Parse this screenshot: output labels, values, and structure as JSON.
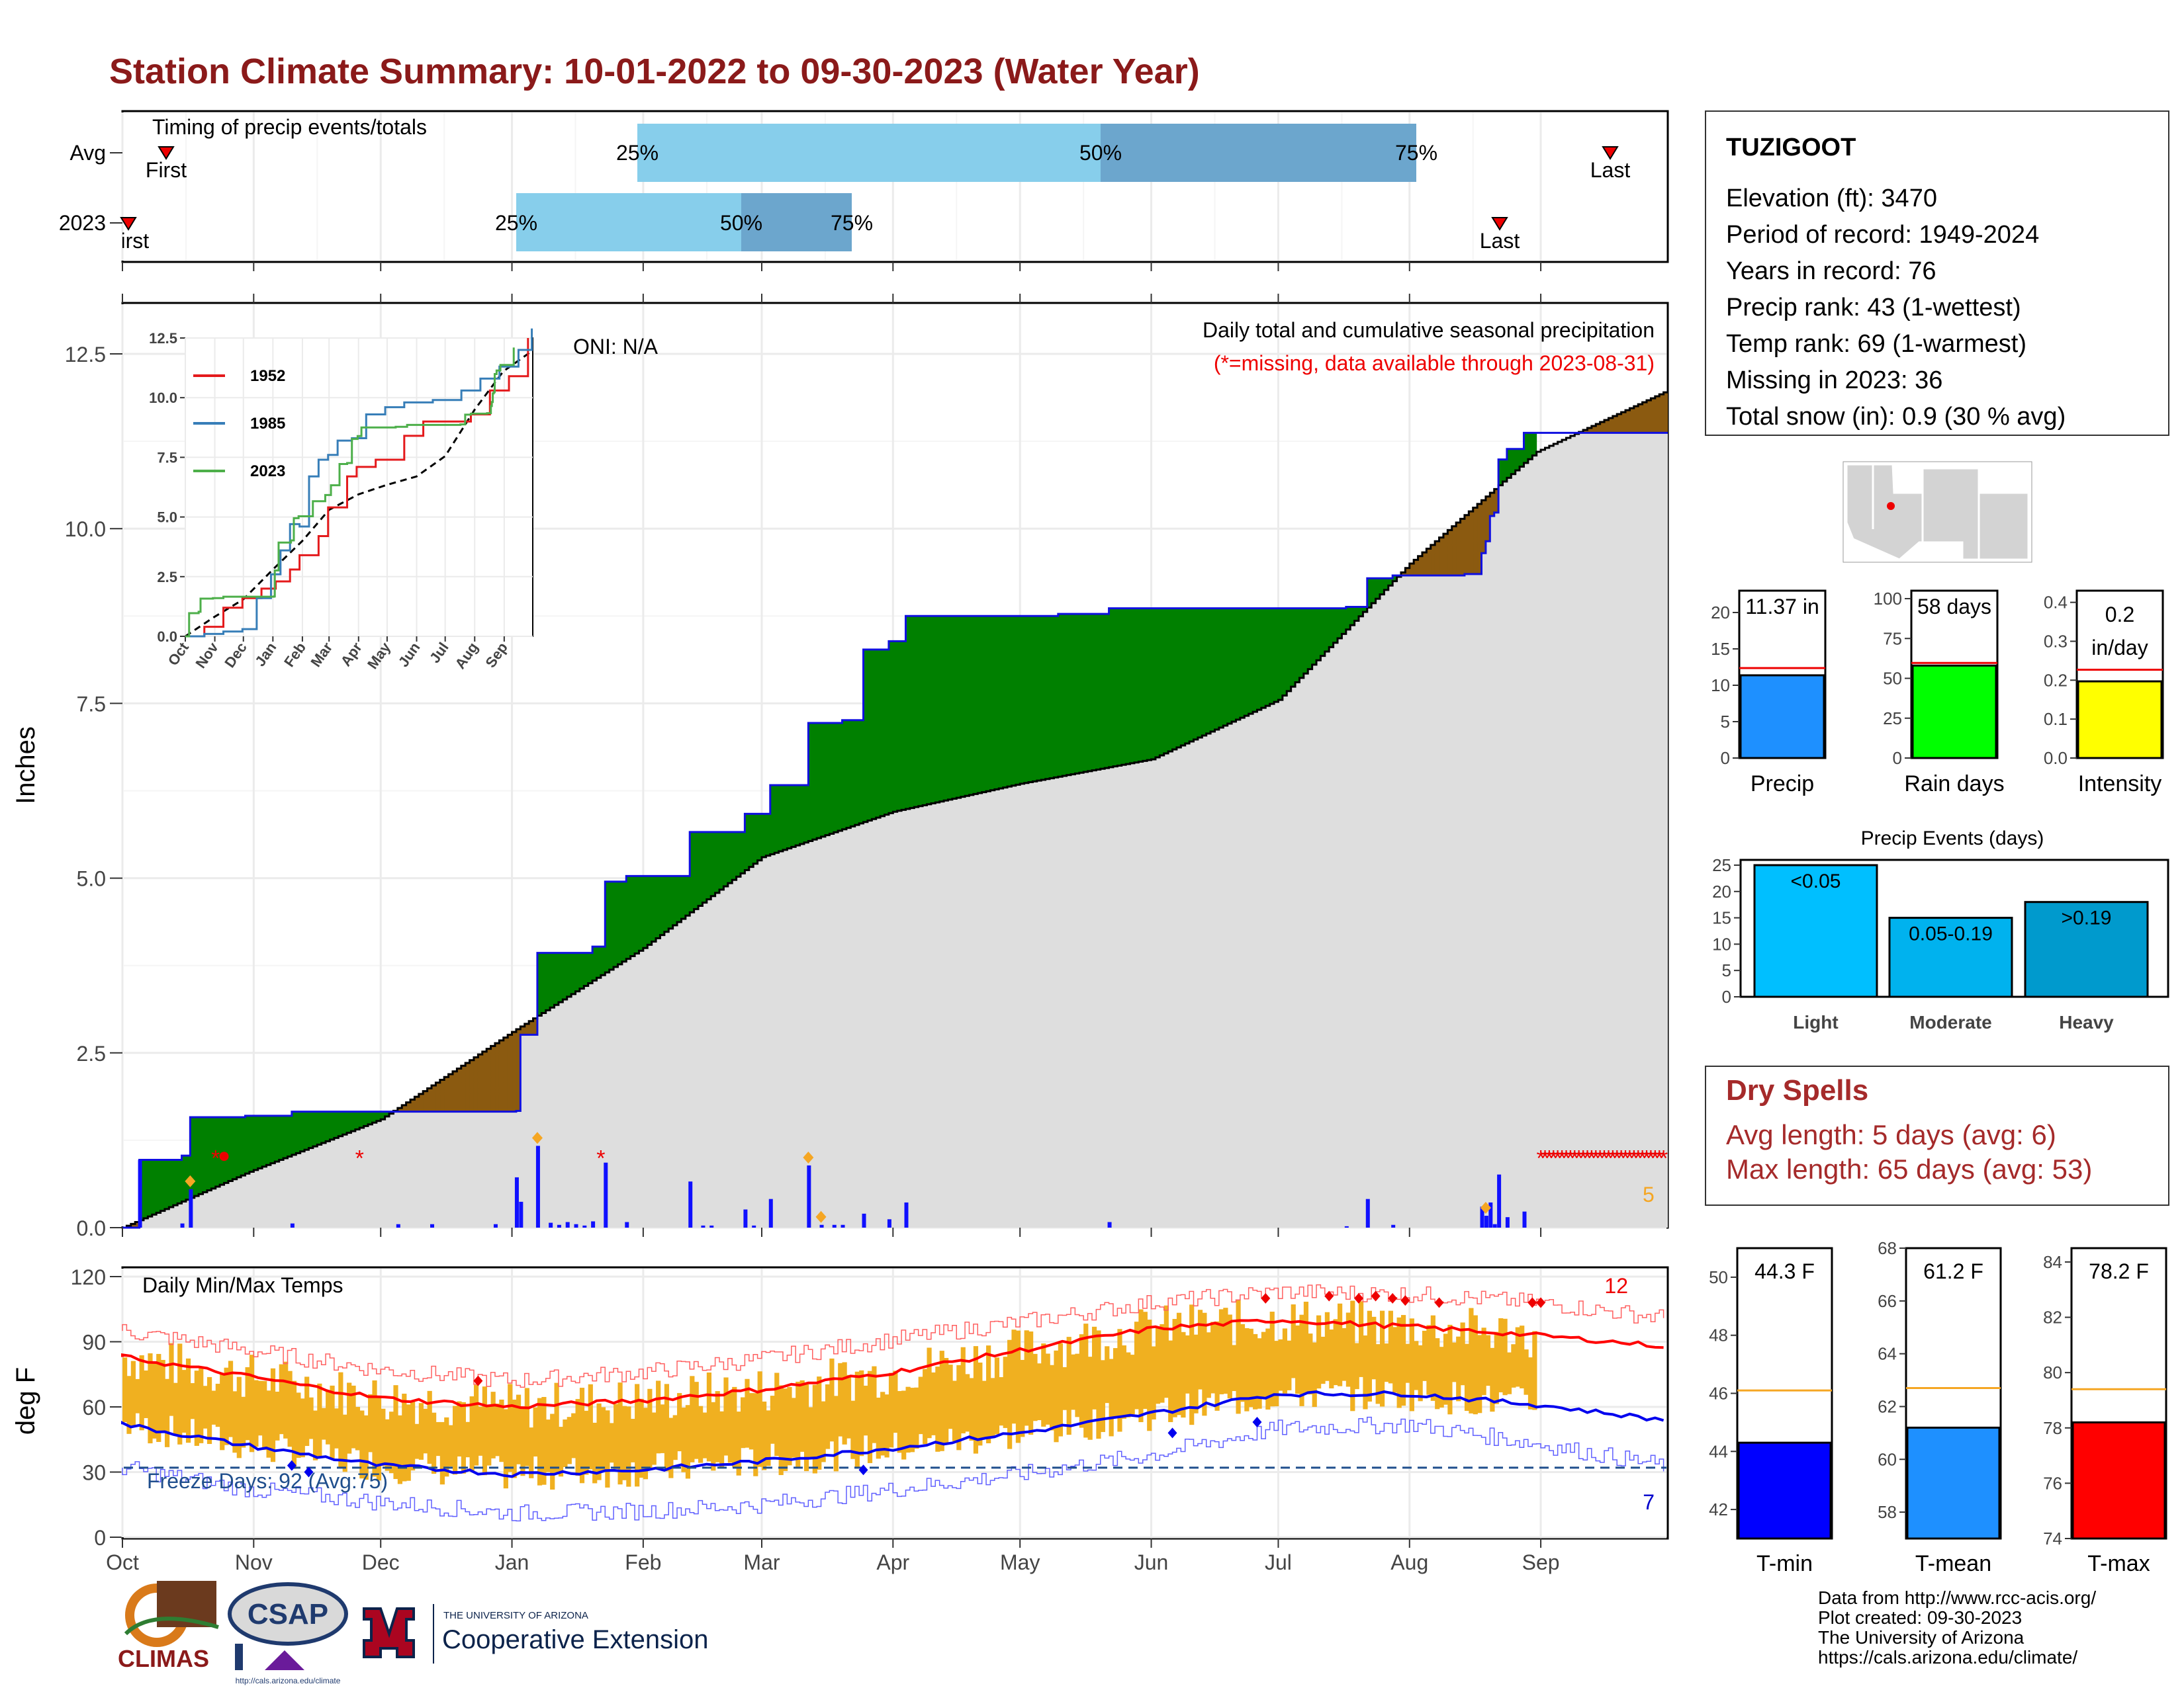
{
  "header": {
    "title": "Station Climate Summary: 10-01-2022 to 09-30-2023 (Water Year)"
  },
  "months": [
    "Oct",
    "Nov",
    "Dec",
    "Jan",
    "Feb",
    "Mar",
    "Apr",
    "May",
    "Jun",
    "Jul",
    "Aug",
    "Sep"
  ],
  "station": {
    "name": "TUZIGOOT",
    "lines": [
      "Elevation (ft): 3470",
      "Period of record: 1949-2024",
      "Years in record: 76",
      "Precip rank: 43 (1-wettest)",
      "Temp rank: 69 (1-warmest)",
      "Missing in 2023: 36",
      "Total snow (in): 0.9 (30 % avg)"
    ]
  },
  "timing": {
    "title": "Timing of precip events/totals",
    "rows": [
      {
        "label": "Avg",
        "first": "First",
        "last": "Last",
        "q25": "25%",
        "q50": "50%",
        "q75": "75%"
      },
      {
        "label": "2023",
        "first": "First",
        "last": "Last",
        "q25": "25%",
        "q50": "50%",
        "q75": "75%"
      }
    ]
  },
  "precip_panel": {
    "ylabel": "Inches",
    "caption1": "Daily total and cumulative seasonal precipitation",
    "caption2": "(*=missing, data available through 2023-08-31)",
    "oni": "ONI: N/A",
    "count_label": "5",
    "yticks": [
      "0.0",
      "2.5",
      "5.0",
      "7.5",
      "10.0",
      "12.5"
    ]
  },
  "inset": {
    "legend": [
      "1952",
      "1985",
      "2023"
    ],
    "yticks": [
      "0.0",
      "2.5",
      "5.0",
      "7.5",
      "10.0",
      "12.5"
    ],
    "colors": {
      "1952": "#e41a1c",
      "1985": "#377eb8",
      "2023": "#4daf4a"
    }
  },
  "temp_panel": {
    "ylabel": "deg F",
    "title": "Daily Min/Max Temps",
    "freeze_label": "Freeze Days: 92 (Avg:75)",
    "hot_count": "12",
    "cold_count": "7",
    "yticks": [
      "0",
      "30",
      "60",
      "90",
      "120"
    ]
  },
  "mini_bars": [
    {
      "label": "Precip",
      "value_text": "11.37 in",
      "value": 11.37,
      "avg": 12.0,
      "ymax": 23,
      "ticks": [
        "0",
        "5",
        "10",
        "15",
        "20"
      ],
      "color": "#1e90ff"
    },
    {
      "label": "Rain days",
      "value_text": "58 days",
      "value": 58,
      "avg": 58,
      "ymax": 105,
      "ticks": [
        "0",
        "25",
        "50",
        "75",
        "100"
      ],
      "color": "#00ff00"
    },
    {
      "label": "Intensity",
      "value_text": "0.2 in/day",
      "value": 0.197,
      "avg": 0.22,
      "ymax": 0.43,
      "ticks": [
        "0.0",
        "0.1",
        "0.2",
        "0.3",
        "0.4"
      ],
      "color": "#ffff00"
    }
  ],
  "precip_events": {
    "title": "Precip Events (days)",
    "bars": [
      {
        "label": "Light",
        "range": "<0.05",
        "value": 25,
        "color": "#00bfff"
      },
      {
        "label": "Moderate",
        "range": "0.05-0.19",
        "value": 15,
        "color": "#00b2ee"
      },
      {
        "label": "Heavy",
        "range": ">0.19",
        "value": 18,
        "color": "#009acd"
      }
    ],
    "ticks": [
      "0",
      "5",
      "10",
      "15",
      "20",
      "25"
    ]
  },
  "dry_spells": {
    "title": "Dry Spells",
    "avg_length": "Avg length: 5 days (avg: 6)",
    "max_length": "Max length: 65 days (avg: 53)"
  },
  "temp_bars": [
    {
      "label": "T-min",
      "value_text": "44.3 F",
      "value": 44.3,
      "avg": 46.1,
      "ymin": 41,
      "ymax": 51,
      "ticks": [
        "42",
        "44",
        "46",
        "48",
        "50"
      ],
      "color": "#0000ff"
    },
    {
      "label": "T-mean",
      "value_text": "61.2 F",
      "value": 61.2,
      "avg": 62.7,
      "ymin": 57,
      "ymax": 68,
      "ticks": [
        "58",
        "60",
        "62",
        "64",
        "66",
        "68"
      ],
      "color": "#1e90ff"
    },
    {
      "label": "T-max",
      "value_text": "78.2 F",
      "value": 78.2,
      "avg": 79.4,
      "ymin": 74,
      "ymax": 84.5,
      "ticks": [
        "74",
        "76",
        "78",
        "80",
        "82",
        "84"
      ],
      "color": "#ff0000"
    }
  ],
  "footer": {
    "credits": [
      "Data from http://www.rcc-acis.org/",
      "Plot created: 09-30-2023",
      "The University of Arizona",
      "https://cals.arizona.edu/climate/"
    ],
    "logos": {
      "climas": "CLIMAS",
      "csap": "CSAP",
      "csap_url": "http://cals.arizona.edu/climate",
      "ua_small": "THE UNIVERSITY OF ARIZONA",
      "ua_big": "Cooperative Extension"
    }
  },
  "chart_data": [
    {
      "type": "area",
      "title": "Daily total and cumulative seasonal precipitation",
      "ylabel": "Inches",
      "ylim": [
        0,
        12.5
      ],
      "x_unit": "day of water year (Oct 1 = 0)",
      "series": [
        {
          "name": "2023",
          "steps": [
            [
              0,
              0
            ],
            [
              4,
              0.97
            ],
            [
              14,
              1.03
            ],
            [
              16,
              1.58
            ],
            [
              29,
              1.6
            ],
            [
              40,
              1.66
            ],
            [
              93,
              1.67
            ],
            [
              94,
              2.76
            ],
            [
              98,
              3.93
            ],
            [
              111,
              4.02
            ],
            [
              114,
              4.95
            ],
            [
              119,
              5.03
            ],
            [
              134,
              5.66
            ],
            [
              147,
              5.92
            ],
            [
              153,
              6.33
            ],
            [
              162,
              7.22
            ],
            [
              170,
              7.26
            ],
            [
              175,
              8.27
            ],
            [
              181,
              8.39
            ],
            [
              185,
              8.75
            ],
            [
              221,
              8.78
            ],
            [
              233,
              8.86
            ],
            [
              289,
              8.88
            ],
            [
              294,
              9.29
            ],
            [
              300,
              9.33
            ],
            [
              317,
              9.35
            ],
            [
              321,
              9.65
            ],
            [
              322,
              9.82
            ],
            [
              323,
              10.18
            ],
            [
              324,
              10.23
            ],
            [
              325,
              10.99
            ],
            [
              327,
              11.14
            ],
            [
              331,
              11.37
            ],
            [
              334,
              11.37
            ]
          ],
          "note": "cumulative 2023 ends 11.37 in at data end 2023-08-31 (day 334)"
        },
        {
          "name": "Average",
          "points": [
            [
              0,
              0
            ],
            [
              30,
              0.8
            ],
            [
              61,
              1.55
            ],
            [
              92,
              2.8
            ],
            [
              123,
              4.0
            ],
            [
              151,
              5.3
            ],
            [
              182,
              5.95
            ],
            [
              212,
              6.35
            ],
            [
              243,
              6.7
            ],
            [
              273,
              7.55
            ],
            [
              304,
              9.5
            ],
            [
              334,
              11.1
            ],
            [
              364,
              11.95
            ]
          ]
        }
      ],
      "daily_bars": [
        [
          4,
          0.97
        ],
        [
          14,
          0.06
        ],
        [
          16,
          0.55
        ],
        [
          40,
          0.06
        ],
        [
          65,
          0.05
        ],
        [
          73,
          0.05
        ],
        [
          88,
          0.05
        ],
        [
          93,
          0.72
        ],
        [
          94,
          0.37
        ],
        [
          98,
          1.17
        ],
        [
          101,
          0.07
        ],
        [
          103,
          0.04
        ],
        [
          105,
          0.08
        ],
        [
          107,
          0.05
        ],
        [
          109,
          0.03
        ],
        [
          111,
          0.09
        ],
        [
          114,
          0.93
        ],
        [
          119,
          0.08
        ],
        [
          134,
          0.66
        ],
        [
          137,
          0.03
        ],
        [
          139,
          0.03
        ],
        [
          147,
          0.26
        ],
        [
          149,
          0.03
        ],
        [
          153,
          0.41
        ],
        [
          162,
          0.89
        ],
        [
          165,
          0.04
        ],
        [
          168,
          0.04
        ],
        [
          170,
          0.04
        ],
        [
          175,
          0.2
        ],
        [
          181,
          0.12
        ],
        [
          185,
          0.36
        ],
        [
          233,
          0.08
        ],
        [
          289,
          0.02
        ],
        [
          294,
          0.41
        ],
        [
          300,
          0.04
        ],
        [
          321,
          0.3
        ],
        [
          322,
          0.17
        ],
        [
          323,
          0.36
        ],
        [
          324,
          0.05
        ],
        [
          325,
          0.76
        ],
        [
          327,
          0.15
        ],
        [
          331,
          0.23
        ]
      ],
      "missing_days": [
        22,
        56,
        113
      ]
    },
    {
      "type": "line",
      "title": "Daily Min/Max Temps",
      "ylabel": "deg F",
      "ylim": [
        0,
        120
      ],
      "x_unit": "day of water year (Oct 1 = 0)",
      "series": [
        {
          "name": "Avg max",
          "points": [
            [
              0,
              83
            ],
            [
              30,
              74
            ],
            [
              61,
              64
            ],
            [
              92,
              60
            ],
            [
              123,
              63
            ],
            [
              151,
              68
            ],
            [
              182,
              76
            ],
            [
              212,
              86
            ],
            [
              243,
              96
            ],
            [
              273,
              100
            ],
            [
              304,
              97
            ],
            [
              334,
              93
            ],
            [
              364,
              88
            ]
          ]
        },
        {
          "name": "Avg min",
          "points": [
            [
              0,
              52
            ],
            [
              30,
              42
            ],
            [
              61,
              33
            ],
            [
              92,
              29
            ],
            [
              123,
              31
            ],
            [
              151,
              35
            ],
            [
              182,
              41
            ],
            [
              212,
              48
            ],
            [
              243,
              57
            ],
            [
              273,
              66
            ],
            [
              304,
              66
            ],
            [
              334,
              61
            ],
            [
              364,
              54
            ]
          ]
        },
        {
          "name": "Record max",
          "points": [
            [
              0,
              95
            ],
            [
              30,
              86
            ],
            [
              61,
              77
            ],
            [
              92,
              72
            ],
            [
              123,
              76
            ],
            [
              151,
              82
            ],
            [
              182,
              91
            ],
            [
              212,
              99
            ],
            [
              243,
              108
            ],
            [
              273,
              113
            ],
            [
              304,
              112
            ],
            [
              334,
              108
            ],
            [
              364,
              101
            ]
          ]
        },
        {
          "name": "Record min",
          "points": [
            [
              0,
              32
            ],
            [
              30,
              22
            ],
            [
              61,
              16
            ],
            [
              92,
              11
            ],
            [
              123,
              12
            ],
            [
              151,
              15
            ],
            [
              182,
              22
            ],
            [
              212,
              29
            ],
            [
              243,
              38
            ],
            [
              273,
              50
            ],
            [
              304,
              52
            ],
            [
              334,
              43
            ],
            [
              364,
              33
            ]
          ]
        }
      ],
      "freeze_line": 32
    }
  ]
}
